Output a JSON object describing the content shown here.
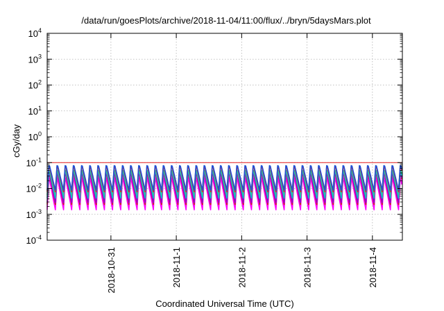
{
  "chart_data": {
    "type": "line",
    "title": "/data/run/goesPlots/archive/2018-11-04/11:00/flux/../bryn/5daysMars.plot",
    "xlabel": "Coordinated Universal Time (UTC)",
    "ylabel": "cGy/day",
    "x_scale": "time",
    "y_scale": "log",
    "xlim": [
      "2018-10-30T00:36",
      "2018-11-04T11:00"
    ],
    "ylim": [
      0.0001,
      10000
    ],
    "grid": true,
    "x_ticks": [
      "2018-10-31",
      "2018-11-1",
      "2018-11-2",
      "2018-11-3",
      "2018-11-4"
    ],
    "y_ticks": [
      {
        "base": "10",
        "exp": "-4"
      },
      {
        "base": "10",
        "exp": "-3"
      },
      {
        "base": "10",
        "exp": "-2"
      },
      {
        "base": "10",
        "exp": "-1"
      },
      {
        "base": "10",
        "exp": "0"
      },
      {
        "base": "10",
        "exp": "1"
      },
      {
        "base": "10",
        "exp": "2"
      },
      {
        "base": "10",
        "exp": "3"
      },
      {
        "base": "10",
        "exp": "4"
      }
    ],
    "reference_line": {
      "y": 0.1,
      "color": "#e41a1c"
    },
    "series": [
      {
        "color": "#ff00ff",
        "x_start": "2018-10-30T00:36",
        "cycle_hours": 3,
        "peak": 0.028,
        "trough": 0.0015
      },
      {
        "color": "#ff00ff",
        "x_start": "2018-10-30T00:36",
        "cycle_hours": 3,
        "peak": 0.034,
        "trough": 0.0019
      },
      {
        "color": "#cc3300",
        "x_start": "2018-10-30T00:36",
        "cycle_hours": 3,
        "peak": 0.045,
        "trough": 0.0024
      },
      {
        "color": "#9400d3",
        "x_start": "2018-10-30T00:36",
        "cycle_hours": 3,
        "peak": 0.048,
        "trough": 0.0028
      },
      {
        "color": "#00c8c8",
        "x_start": "2018-10-30T00:36",
        "cycle_hours": 3,
        "peak": 0.058,
        "trough": 0.0042
      },
      {
        "color": "#2ec4a0",
        "x_start": "2018-10-30T00:36",
        "cycle_hours": 3,
        "peak": 0.064,
        "trough": 0.0055
      },
      {
        "color": "#e41a1c",
        "x_start": "2018-10-30T00:36",
        "cycle_hours": 3,
        "peak": 0.085,
        "trough": 0.0075
      },
      {
        "color": "#1f4fd6",
        "x_start": "2018-10-30T00:36",
        "cycle_hours": 3,
        "peak": 0.095,
        "trough": 0.0085
      }
    ]
  }
}
